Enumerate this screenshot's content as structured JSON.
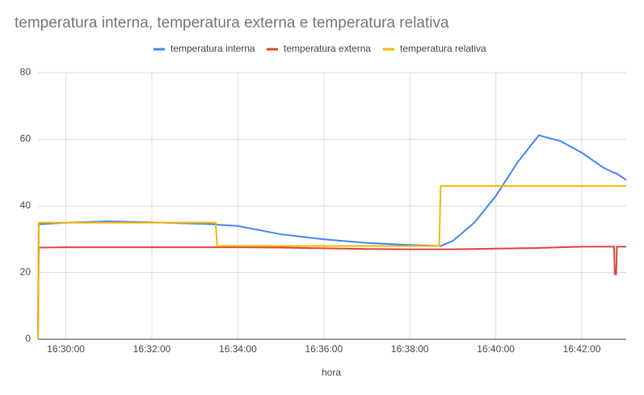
{
  "chart_data": {
    "type": "line",
    "title": "temperatura interna, temperatura externa e temperatura relativa",
    "x_label": "hora",
    "x": [
      "16:29:21",
      "16:29:22",
      "16:30:00",
      "16:31:00",
      "16:32:00",
      "16:33:00",
      "16:33:29",
      "16:33:31",
      "16:34:00",
      "16:35:00",
      "16:36:00",
      "16:37:00",
      "16:38:00",
      "16:38:41",
      "16:38:43",
      "16:39:00",
      "16:39:30",
      "16:40:00",
      "16:40:30",
      "16:41:00",
      "16:41:30",
      "16:42:00",
      "16:42:30",
      "16:42:45",
      "16:42:46",
      "16:42:48",
      "16:42:49",
      "16:43:02"
    ],
    "series": [
      {
        "name": "temperatura interna",
        "color": "#4285f4",
        "values": [
          0,
          34.5,
          35,
          35.4,
          35.1,
          34.7,
          34.5,
          34.4,
          34,
          31.5,
          30,
          28.9,
          28.3,
          28,
          28,
          29.5,
          35,
          43,
          53,
          61.2,
          59.5,
          56,
          51.5,
          50,
          49.9,
          49.8,
          49.7,
          47.8
        ]
      },
      {
        "name": "temperatura externa",
        "color": "#db4437",
        "values": [
          0,
          27.5,
          27.6,
          27.6,
          27.6,
          27.6,
          27.6,
          27.6,
          27.6,
          27.5,
          27.3,
          27.1,
          27,
          27,
          27,
          27,
          27.1,
          27.2,
          27.3,
          27.4,
          27.6,
          27.8,
          27.8,
          27.8,
          19.5,
          19.5,
          27.8,
          27.8
        ]
      },
      {
        "name": "temperatura relativa",
        "color": "#f4b400",
        "values": [
          0,
          35,
          35,
          35,
          35,
          35,
          35,
          28,
          28,
          28,
          28,
          28,
          28,
          28,
          46,
          46,
          46,
          46,
          46,
          46,
          46,
          46,
          46,
          46,
          46,
          46,
          46,
          46
        ]
      }
    ],
    "xlim": [
      "16:29:21",
      "16:43:02"
    ],
    "xticks": [
      "16:30:00",
      "16:32:00",
      "16:34:00",
      "16:36:00",
      "16:38:00",
      "16:40:00",
      "16:42:00"
    ],
    "ylim": [
      0,
      80
    ],
    "yticks": [
      0,
      20,
      40,
      60,
      80
    ],
    "grid": true,
    "legend": "top"
  }
}
